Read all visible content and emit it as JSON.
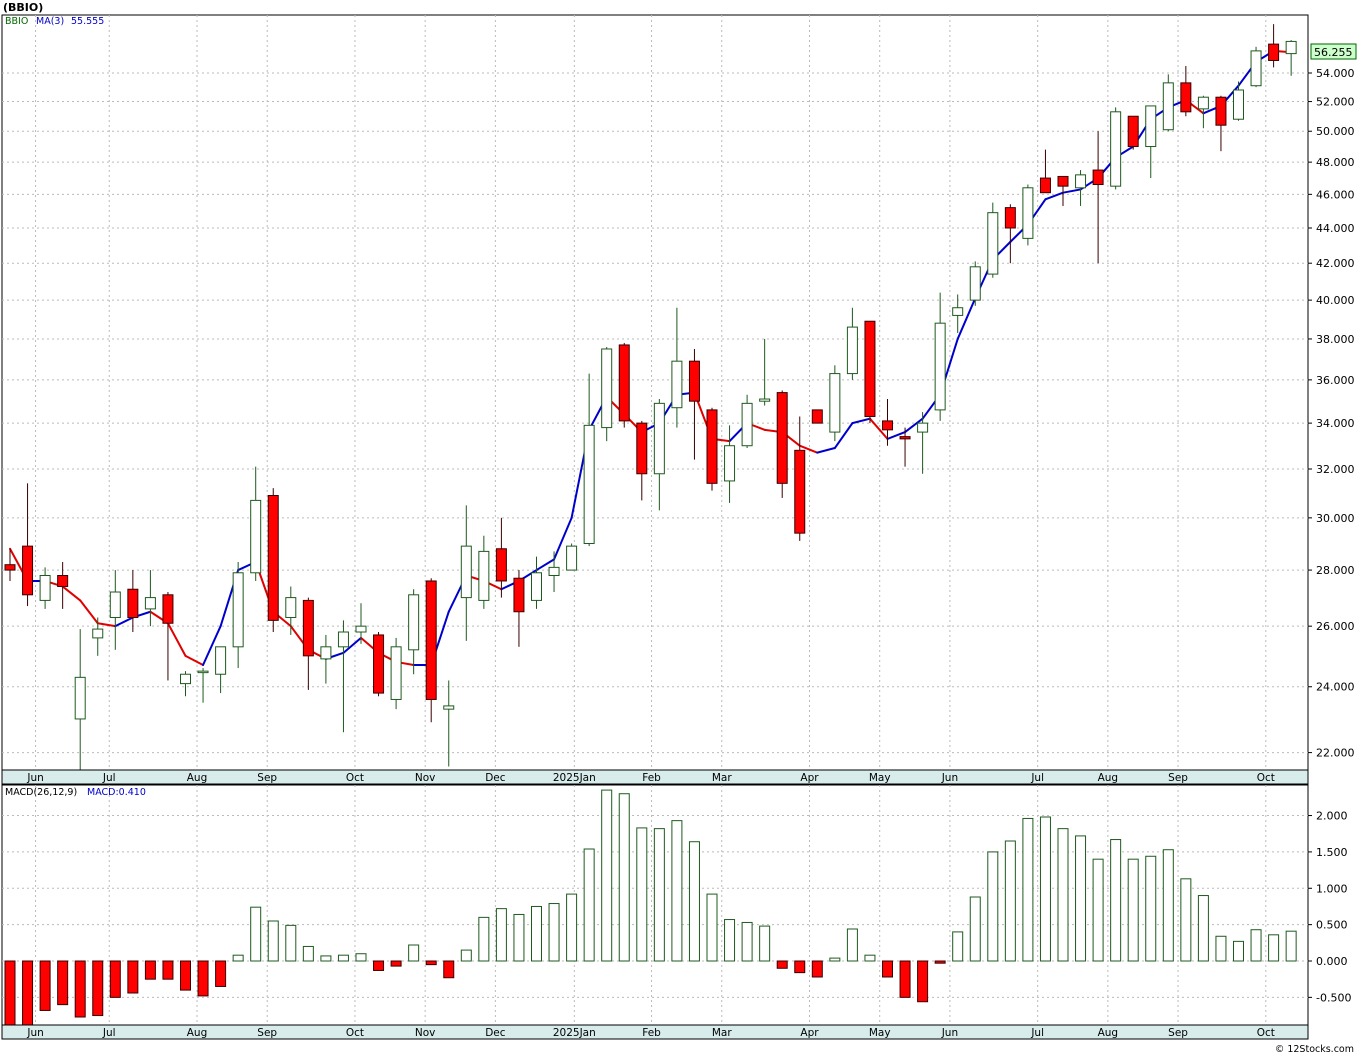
{
  "chart_data": [
    {
      "type": "candlestick",
      "title": "(BBIO)",
      "symbol": "BBIO",
      "overlay_label": "MA(3)",
      "overlay_value": "55.555",
      "last_price": "56.255",
      "y_scale": "log",
      "ylim": [
        21.5,
        58.3
      ],
      "yticks": [
        "22.000",
        "24.000",
        "26.000",
        "28.000",
        "30.000",
        "32.000",
        "34.000",
        "36.000",
        "38.000",
        "40.000",
        "42.000",
        "44.000",
        "46.000",
        "48.000",
        "50.000",
        "52.000",
        "54.000"
      ],
      "x_labels": [
        "Jun",
        "Jul",
        "Aug",
        "Sep",
        "Oct",
        "Nov",
        "Dec",
        "2025Jan",
        "Feb",
        "Mar",
        "Apr",
        "May",
        "Jun",
        "Jul",
        "Aug",
        "Sep",
        "Oct"
      ],
      "grid": true,
      "colors": {
        "up": "#ffffff",
        "up_edge": "#1e5a1e",
        "down": "#ff0000",
        "down_edge": "#3a0000",
        "ma_up": "#0000cc",
        "ma_down": "#e00000",
        "axis_band": "#d8ecec",
        "last_price_bg": "#ccffcc"
      },
      "candles": [
        [
          28.2,
          28.8,
          27.6,
          28.0
        ],
        [
          28.9,
          31.4,
          26.7,
          27.1
        ],
        [
          26.9,
          28.1,
          26.6,
          27.8
        ],
        [
          27.8,
          28.3,
          26.6,
          27.4
        ],
        [
          23.0,
          25.9,
          21.5,
          24.3
        ],
        [
          25.6,
          26.3,
          25.0,
          25.9
        ],
        [
          26.3,
          28.0,
          25.2,
          27.2
        ],
        [
          27.3,
          28.0,
          25.8,
          26.3
        ],
        [
          26.6,
          28.0,
          26.0,
          27.0
        ],
        [
          27.1,
          27.2,
          24.2,
          26.1
        ],
        [
          24.1,
          24.5,
          23.7,
          24.4
        ],
        [
          24.5,
          24.6,
          23.5,
          24.5
        ],
        [
          24.4,
          25.3,
          23.8,
          25.3
        ],
        [
          25.3,
          28.3,
          24.6,
          27.9
        ],
        [
          27.9,
          32.1,
          27.6,
          30.7
        ],
        [
          30.9,
          31.2,
          25.8,
          26.2
        ],
        [
          26.3,
          27.4,
          25.7,
          27.0
        ],
        [
          26.9,
          27.0,
          23.9,
          25.0
        ],
        [
          24.9,
          25.7,
          24.1,
          25.3
        ],
        [
          25.3,
          26.2,
          22.6,
          25.8
        ],
        [
          25.8,
          26.8,
          25.4,
          26.0
        ],
        [
          25.7,
          25.8,
          23.7,
          23.8
        ],
        [
          23.6,
          25.6,
          23.3,
          25.3
        ],
        [
          25.2,
          27.3,
          24.4,
          27.1
        ],
        [
          27.6,
          27.7,
          22.9,
          23.6
        ],
        [
          23.3,
          24.2,
          21.6,
          23.4
        ],
        [
          27.0,
          30.5,
          25.5,
          28.9
        ],
        [
          26.9,
          29.3,
          26.6,
          28.7
        ],
        [
          28.8,
          30.0,
          27.0,
          27.6
        ],
        [
          27.7,
          28.0,
          25.3,
          26.5
        ],
        [
          26.9,
          28.5,
          26.6,
          27.9
        ],
        [
          27.8,
          28.7,
          27.2,
          28.1
        ],
        [
          28.0,
          29.0,
          28.0,
          28.9
        ],
        [
          29.0,
          36.3,
          28.9,
          33.9
        ],
        [
          33.8,
          37.6,
          33.2,
          37.5
        ],
        [
          37.7,
          37.8,
          33.8,
          34.1
        ],
        [
          34.0,
          34.1,
          30.7,
          31.8
        ],
        [
          31.8,
          35.1,
          30.3,
          34.9
        ],
        [
          34.7,
          39.6,
          33.8,
          36.9
        ],
        [
          36.9,
          37.5,
          32.4,
          35.0
        ],
        [
          34.6,
          34.7,
          31.1,
          31.4
        ],
        [
          31.5,
          33.9,
          30.6,
          33.0
        ],
        [
          33.0,
          35.3,
          32.9,
          34.9
        ],
        [
          35.0,
          38.0,
          34.8,
          35.1
        ],
        [
          35.4,
          35.5,
          30.8,
          31.4
        ],
        [
          32.8,
          34.3,
          29.1,
          29.4
        ],
        [
          34.6,
          34.6,
          34.0,
          34.0
        ],
        [
          33.6,
          36.7,
          33.2,
          36.3
        ],
        [
          36.3,
          39.6,
          36.0,
          38.6
        ],
        [
          38.9,
          38.9,
          34.0,
          34.3
        ],
        [
          34.1,
          35.1,
          33.0,
          33.7
        ],
        [
          33.4,
          33.8,
          32.1,
          33.3
        ],
        [
          33.6,
          34.5,
          31.8,
          34.0
        ],
        [
          34.6,
          40.4,
          34.1,
          38.8
        ],
        [
          39.2,
          40.3,
          38.3,
          39.6
        ],
        [
          40.0,
          42.1,
          39.7,
          41.8
        ],
        [
          41.4,
          45.5,
          41.2,
          44.9
        ],
        [
          45.2,
          45.4,
          42.0,
          44.0
        ],
        [
          43.4,
          46.6,
          43.0,
          46.4
        ],
        [
          47.0,
          48.8,
          46.1,
          46.1
        ],
        [
          47.1,
          47.1,
          45.3,
          46.5
        ],
        [
          46.4,
          47.5,
          45.3,
          47.2
        ],
        [
          47.5,
          50.0,
          42.0,
          46.6
        ],
        [
          46.5,
          51.6,
          46.3,
          51.3
        ],
        [
          51.0,
          51.0,
          48.8,
          49.0
        ],
        [
          49.0,
          51.7,
          47.0,
          51.7
        ],
        [
          50.1,
          53.9,
          50.0,
          53.3
        ],
        [
          53.3,
          54.5,
          51.0,
          51.3
        ],
        [
          51.5,
          52.4,
          50.2,
          52.3
        ],
        [
          52.3,
          52.4,
          48.7,
          50.4
        ],
        [
          50.8,
          53.4,
          50.7,
          52.8
        ],
        [
          53.1,
          55.9,
          53.0,
          55.6
        ],
        [
          56.1,
          57.6,
          54.4,
          54.9
        ],
        [
          55.4,
          56.4,
          53.8,
          56.3
        ]
      ],
      "ma3": [
        28.8,
        27.6,
        27.6,
        27.4,
        26.9,
        26.1,
        26.0,
        26.3,
        26.5,
        26.1,
        25.0,
        24.7,
        26.0,
        28.0,
        28.3,
        26.5,
        26.0,
        25.2,
        24.9,
        25.1,
        25.6,
        25.1,
        24.8,
        24.7,
        24.7,
        26.5,
        27.8,
        27.6,
        27.3,
        27.6,
        28.0,
        28.4,
        30.0,
        33.7,
        35.2,
        34.4,
        33.6,
        34.0,
        35.3,
        35.4,
        33.3,
        33.2,
        34.0,
        33.7,
        33.6,
        33.0,
        32.7,
        32.9,
        34.0,
        34.2,
        33.3,
        33.6,
        34.2,
        35.3,
        38.0,
        40.1,
        42.2,
        43.2,
        44.2,
        45.7,
        46.1,
        46.3,
        47.0,
        48.3,
        49.0,
        50.8,
        51.6,
        52.1,
        51.2,
        51.7,
        53.1,
        54.8,
        55.6,
        55.5
      ],
      "xlabels_idx_note": "month label anchor x positions are layout (in script)"
    },
    {
      "type": "bar",
      "title": "MACD(26,12,9)",
      "value_label": "MACD:0.410",
      "ylim": [
        -0.88,
        2.42
      ],
      "yticks": [
        "-0.500",
        "0.000",
        "0.500",
        "1.000",
        "1.500",
        "2.000"
      ],
      "x_labels": [
        "Jun",
        "Jul",
        "Aug",
        "Sep",
        "Oct",
        "Nov",
        "Dec",
        "2025Jan",
        "Feb",
        "Mar",
        "Apr",
        "May",
        "Jun",
        "Jul",
        "Aug",
        "Sep",
        "Oct"
      ],
      "values": [
        -0.95,
        -0.9,
        -0.68,
        -0.6,
        -0.77,
        -0.75,
        -0.5,
        -0.44,
        -0.25,
        -0.25,
        -0.4,
        -0.48,
        -0.35,
        0.08,
        0.74,
        0.55,
        0.49,
        0.2,
        0.07,
        0.08,
        0.1,
        -0.13,
        -0.07,
        0.22,
        -0.05,
        -0.23,
        0.15,
        0.6,
        0.72,
        0.64,
        0.75,
        0.79,
        0.92,
        1.54,
        2.35,
        2.3,
        1.83,
        1.82,
        1.93,
        1.64,
        0.92,
        0.57,
        0.53,
        0.48,
        -0.1,
        -0.16,
        -0.22,
        0.04,
        0.44,
        0.08,
        -0.22,
        -0.5,
        -0.56,
        -0.03,
        0.4,
        0.88,
        1.5,
        1.65,
        1.96,
        1.98,
        1.82,
        1.72,
        1.4,
        1.67,
        1.4,
        1.44,
        1.53,
        1.13,
        0.9,
        0.34,
        0.27,
        0.43,
        0.36,
        0.41
      ]
    }
  ],
  "credit": "© 12Stocks.com"
}
